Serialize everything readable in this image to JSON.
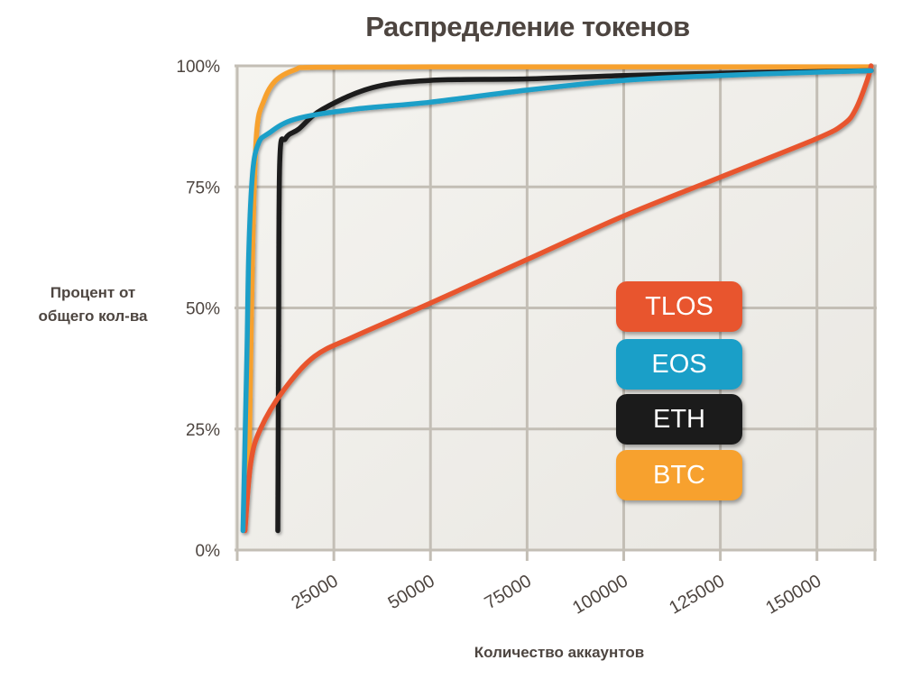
{
  "chart_data": {
    "type": "line",
    "title": "Распределение токенов",
    "xlabel": "Количество аккаунтов",
    "ylabel": [
      "Процент от",
      "общего кол-ва"
    ],
    "xlim": [
      0,
      165000
    ],
    "ylim": [
      0,
      100
    ],
    "x_ticks": [
      25000,
      50000,
      75000,
      100000,
      125000,
      150000
    ],
    "y_ticks": [
      0,
      25,
      50,
      75,
      100
    ],
    "y_tick_labels": [
      "0%",
      "25%",
      "50%",
      "75%",
      "100%"
    ],
    "grid": true,
    "legend": "right-center",
    "series": [
      {
        "name": "TLOS",
        "color": "#e8552e",
        "points": [
          [
            2000,
            4
          ],
          [
            3500,
            18
          ],
          [
            6000,
            25
          ],
          [
            12000,
            33
          ],
          [
            20000,
            40
          ],
          [
            30000,
            44
          ],
          [
            50000,
            51
          ],
          [
            75000,
            60
          ],
          [
            100000,
            69
          ],
          [
            125000,
            77
          ],
          [
            150000,
            85
          ],
          [
            157000,
            88
          ],
          [
            160000,
            91
          ],
          [
            163000,
            97
          ],
          [
            164000,
            100
          ]
        ]
      },
      {
        "name": "EOS",
        "color": "#1a9fc8",
        "points": [
          [
            1500,
            4
          ],
          [
            2500,
            40
          ],
          [
            3000,
            62
          ],
          [
            4000,
            78
          ],
          [
            5500,
            84
          ],
          [
            8000,
            86
          ],
          [
            15000,
            89
          ],
          [
            30000,
            91
          ],
          [
            50000,
            92.5
          ],
          [
            75000,
            95
          ],
          [
            100000,
            97
          ],
          [
            125000,
            98
          ],
          [
            150000,
            98.7
          ],
          [
            164000,
            99
          ]
        ]
      },
      {
        "name": "ETH",
        "color": "#1b1b1b",
        "points": [
          [
            10500,
            4
          ],
          [
            10700,
            40
          ],
          [
            11000,
            80
          ],
          [
            12500,
            85
          ],
          [
            16000,
            87
          ],
          [
            22000,
            91
          ],
          [
            35000,
            95.5
          ],
          [
            50000,
            97
          ],
          [
            75000,
            97.3
          ],
          [
            100000,
            98
          ],
          [
            125000,
            98.5
          ],
          [
            150000,
            98.8
          ],
          [
            164000,
            99
          ]
        ]
      },
      {
        "name": "BTC",
        "color": "#f7a12e",
        "points": [
          [
            3000,
            15
          ],
          [
            4000,
            62
          ],
          [
            5000,
            86
          ],
          [
            7000,
            93
          ],
          [
            10000,
            97
          ],
          [
            15000,
            99.2
          ],
          [
            20000,
            99.7
          ],
          [
            50000,
            99.8
          ],
          [
            100000,
            99.8
          ],
          [
            150000,
            99.8
          ],
          [
            164000,
            99.8
          ]
        ]
      }
    ]
  }
}
